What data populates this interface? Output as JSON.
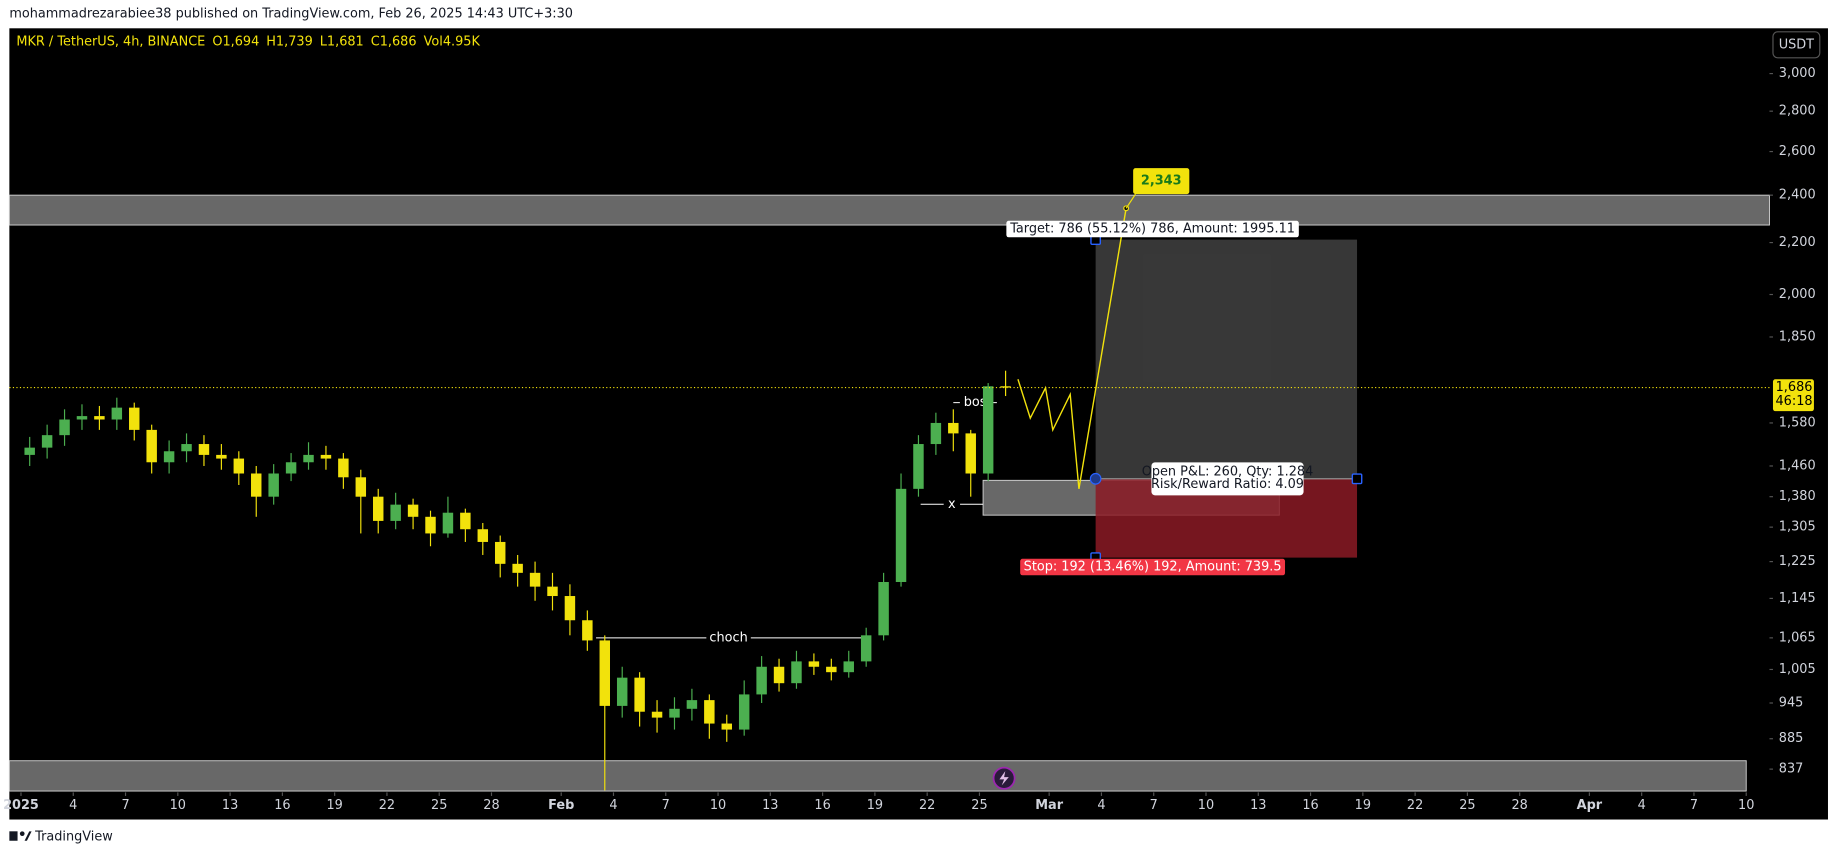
{
  "header": "mohammadrezarabiee38 published on TradingView.com, Feb 26, 2025 14:43 UTC+3:30",
  "footer": "TradingView",
  "chart_data": {
    "type": "candlestick",
    "legend": {
      "symbol": "MKR / TetherUS, 4h, BINANCE",
      "values": [
        "O1,694",
        "H1,739",
        "L1,681",
        "C1,686",
        "Vol4.95K"
      ]
    },
    "currency": "USDT",
    "log": true,
    "up_color": "#4caf50",
    "down_color": "#f2e20c",
    "background": "#000000",
    "x": [
      "2025-01-01",
      "2025-01-02",
      "2025-01-03",
      "2025-01-04",
      "2025-01-05",
      "2025-01-06",
      "2025-01-07",
      "2025-01-08",
      "2025-01-09",
      "2025-01-10",
      "2025-01-11",
      "2025-01-12",
      "2025-01-13",
      "2025-01-14",
      "2025-01-15",
      "2025-01-16",
      "2025-01-17",
      "2025-01-18",
      "2025-01-19",
      "2025-01-20",
      "2025-01-21",
      "2025-01-22",
      "2025-01-23",
      "2025-01-24",
      "2025-01-25",
      "2025-01-26",
      "2025-01-27",
      "2025-01-28",
      "2025-01-29",
      "2025-01-30",
      "2025-01-31",
      "2025-02-01",
      "2025-02-02",
      "2025-02-03",
      "2025-02-04",
      "2025-02-05",
      "2025-02-06",
      "2025-02-07",
      "2025-02-08",
      "2025-02-09",
      "2025-02-10",
      "2025-02-11",
      "2025-02-12",
      "2025-02-13",
      "2025-02-14",
      "2025-02-15",
      "2025-02-16",
      "2025-02-17",
      "2025-02-18",
      "2025-02-19",
      "2025-02-20",
      "2025-02-21",
      "2025-02-22",
      "2025-02-23",
      "2025-02-24",
      "2025-02-25",
      "2025-02-26"
    ],
    "open": [
      1490,
      1510,
      1545,
      1590,
      1600,
      1590,
      1625,
      1560,
      1470,
      1500,
      1520,
      1490,
      1480,
      1440,
      1380,
      1440,
      1470,
      1490,
      1480,
      1430,
      1380,
      1320,
      1360,
      1330,
      1290,
      1340,
      1300,
      1270,
      1220,
      1200,
      1170,
      1150,
      1100,
      1060,
      940,
      990,
      930,
      920,
      935,
      950,
      910,
      900,
      960,
      1010,
      980,
      1020,
      1010,
      1000,
      1020,
      1070,
      1180,
      1400,
      1520,
      1580,
      1550,
      1440,
      1690
    ],
    "high": [
      1540,
      1575,
      1620,
      1635,
      1630,
      1655,
      1640,
      1575,
      1530,
      1550,
      1545,
      1520,
      1500,
      1460,
      1465,
      1495,
      1525,
      1515,
      1495,
      1450,
      1400,
      1390,
      1375,
      1345,
      1380,
      1350,
      1315,
      1285,
      1240,
      1225,
      1200,
      1175,
      1120,
      1070,
      1010,
      1000,
      950,
      955,
      970,
      960,
      925,
      985,
      1030,
      1025,
      1040,
      1035,
      1025,
      1040,
      1085,
      1200,
      1440,
      1545,
      1610,
      1620,
      1560,
      1700,
      1739
    ],
    "low": [
      1460,
      1480,
      1515,
      1560,
      1560,
      1560,
      1530,
      1440,
      1440,
      1470,
      1460,
      1450,
      1410,
      1330,
      1360,
      1420,
      1450,
      1450,
      1400,
      1290,
      1290,
      1300,
      1300,
      1260,
      1280,
      1270,
      1240,
      1190,
      1170,
      1140,
      1120,
      1070,
      1040,
      805,
      920,
      905,
      895,
      900,
      915,
      885,
      880,
      890,
      945,
      965,
      970,
      995,
      985,
      990,
      1010,
      1060,
      1170,
      1380,
      1490,
      1500,
      1380,
      1420,
      1660
    ],
    "close": [
      1510,
      1545,
      1590,
      1600,
      1590,
      1625,
      1560,
      1470,
      1500,
      1520,
      1490,
      1480,
      1440,
      1380,
      1440,
      1470,
      1490,
      1480,
      1430,
      1380,
      1320,
      1360,
      1330,
      1290,
      1340,
      1300,
      1270,
      1220,
      1200,
      1170,
      1150,
      1100,
      1060,
      940,
      990,
      930,
      920,
      935,
      950,
      910,
      900,
      960,
      1010,
      980,
      1020,
      1010,
      1000,
      1020,
      1070,
      1180,
      1400,
      1520,
      1580,
      1550,
      1440,
      1690,
      1686
    ],
    "last_price": {
      "value": 1686,
      "label": "1,686",
      "countdown": "46:18"
    },
    "xlim": [
      "2024-12-31T08:00",
      "2025-04-11T08:00"
    ],
    "xticks": [
      {
        "value": "2025-01-01",
        "label": "2025"
      },
      {
        "value": "2025-01-04",
        "label": "4"
      },
      {
        "value": "2025-01-07",
        "label": "7"
      },
      {
        "value": "2025-01-10",
        "label": "10"
      },
      {
        "value": "2025-01-13",
        "label": "13"
      },
      {
        "value": "2025-01-16",
        "label": "16"
      },
      {
        "value": "2025-01-19",
        "label": "19"
      },
      {
        "value": "2025-01-22",
        "label": "22"
      },
      {
        "value": "2025-01-25",
        "label": "25"
      },
      {
        "value": "2025-01-28",
        "label": "28"
      },
      {
        "value": "2025-02-01",
        "label": "Feb"
      },
      {
        "value": "2025-02-04",
        "label": "4"
      },
      {
        "value": "2025-02-07",
        "label": "7"
      },
      {
        "value": "2025-02-10",
        "label": "10"
      },
      {
        "value": "2025-02-13",
        "label": "13"
      },
      {
        "value": "2025-02-16",
        "label": "16"
      },
      {
        "value": "2025-02-19",
        "label": "19"
      },
      {
        "value": "2025-02-22",
        "label": "22"
      },
      {
        "value": "2025-02-25",
        "label": "25"
      },
      {
        "value": "2025-03-01",
        "label": "Mar"
      },
      {
        "value": "2025-03-04",
        "label": "4"
      },
      {
        "value": "2025-03-07",
        "label": "7"
      },
      {
        "value": "2025-03-10",
        "label": "10"
      },
      {
        "value": "2025-03-13",
        "label": "13"
      },
      {
        "value": "2025-03-16",
        "label": "16"
      },
      {
        "value": "2025-03-19",
        "label": "19"
      },
      {
        "value": "2025-03-22",
        "label": "22"
      },
      {
        "value": "2025-03-25",
        "label": "25"
      },
      {
        "value": "2025-03-28",
        "label": "28"
      },
      {
        "value": "2025-04-01",
        "label": "Apr"
      },
      {
        "value": "2025-04-04",
        "label": "4"
      },
      {
        "value": "2025-04-07",
        "label": "7"
      },
      {
        "value": "2025-04-10",
        "label": "10"
      }
    ],
    "ylim": [
      802,
      3260
    ],
    "yticks": [
      {
        "value": 3000,
        "label": "3,000"
      },
      {
        "value": 2800,
        "label": "2,800"
      },
      {
        "value": 2600,
        "label": "2,600"
      },
      {
        "value": 2400,
        "label": "2,400"
      },
      {
        "value": 2200,
        "label": "2,200"
      },
      {
        "value": 2000,
        "label": "2,000"
      },
      {
        "value": 1850,
        "label": "1,850"
      },
      {
        "value": 1580,
        "label": "1,580"
      },
      {
        "value": 1460,
        "label": "1,460"
      },
      {
        "value": 1380,
        "label": "1,380"
      },
      {
        "value": 1305,
        "label": "1,305"
      },
      {
        "value": 1225,
        "label": "1,225"
      },
      {
        "value": 1145,
        "label": "1,145"
      },
      {
        "value": 1065,
        "label": "1,065"
      },
      {
        "value": 1005,
        "label": "1,005"
      },
      945,
      885,
      837
    ],
    "zones": [
      {
        "y": [
          2272,
          2400
        ],
        "x": [
          "2024-12-31T08:00",
          "2025-04-11T08:00"
        ],
        "color": "#7a7a7a"
      },
      {
        "y": [
          804,
          850
        ],
        "x": [
          "2024-12-31T08:00",
          "2025-04-10T00:00"
        ],
        "color": "#7a7a7a"
      },
      {
        "y": [
          1334,
          1422
        ],
        "x": [
          "2025-02-25T05:00",
          "2025-03-14T05:00"
        ],
        "color": "#7a7a7a"
      }
    ],
    "structure": [
      {
        "label": "choch",
        "y": 1065,
        "x": [
          "2025-02-03T00:00",
          "2025-02-18T05:00"
        ]
      },
      {
        "label": "bos",
        "y": 1640,
        "x": [
          "2025-02-23T12:00",
          "2025-02-26T00:00"
        ]
      },
      {
        "label": "x",
        "y": 1361,
        "x": [
          "2025-02-21T15:00",
          "2025-02-25T05:00"
        ]
      }
    ],
    "projection": {
      "x": [
        "2025-02-27T05:00",
        "2025-02-27T22:00",
        "2025-02-28T19:00",
        "2025-03-01T05:00",
        "2025-03-02T05:00",
        "2025-03-02T17:00",
        "2025-03-05T10:00"
      ],
      "y": [
        1712,
        1594,
        1685,
        1560,
        1665,
        1400,
        2343
      ],
      "color": "#f2e20c",
      "end_label": "2,343"
    },
    "position": {
      "entry": 1426,
      "target": 2212,
      "stop": 1234,
      "x": [
        "2025-03-03T16:00",
        "2025-03-18T16:00"
      ],
      "target_label": "Target: 786 (55.12%) 786, Amount: 1995.11",
      "pnl_label": "Open P&L: 260, Qty: 1.284",
      "rr_label": "Risk/Reward Ratio: 4.09",
      "stop_label": "Stop: 192 (13.46%) 192, Amount: 739.5"
    }
  }
}
